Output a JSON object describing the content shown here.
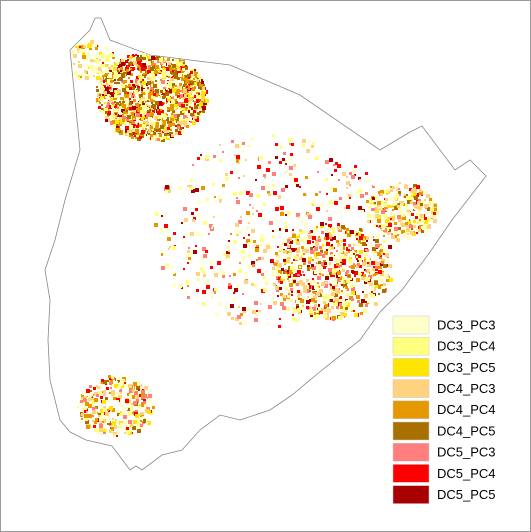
{
  "legend": {
    "items": [
      {
        "label": "DC3_PC3",
        "color": "#ffffc8"
      },
      {
        "label": "DC3_PC4",
        "color": "#ffff80"
      },
      {
        "label": "DC3_PC5",
        "color": "#ffe600"
      },
      {
        "label": "DC4_PC3",
        "color": "#ffd27f"
      },
      {
        "label": "DC4_PC4",
        "color": "#e69800"
      },
      {
        "label": "DC4_PC5",
        "color": "#a87000"
      },
      {
        "label": "DC5_PC3",
        "color": "#ff7f7f"
      },
      {
        "label": "DC5_PC4",
        "color": "#ff0000"
      },
      {
        "label": "DC5_PC5",
        "color": "#a80000"
      }
    ]
  }
}
